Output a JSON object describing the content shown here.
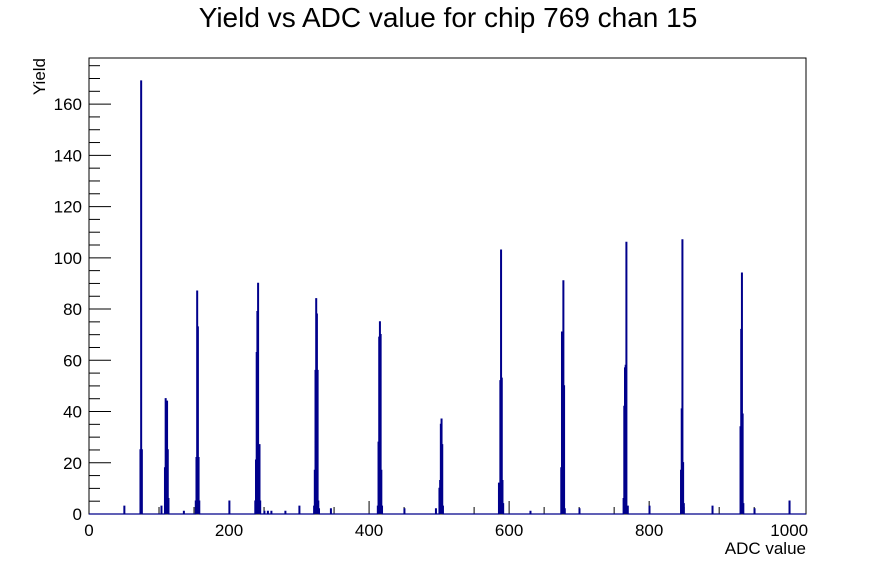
{
  "chart_data": {
    "type": "histogram",
    "title": "Yield vs ADC value for chip 769 chan 15",
    "xlabel": "ADC value",
    "ylabel": "Yield",
    "xlim": [
      0,
      1024
    ],
    "ylim": [
      0,
      178
    ],
    "x_ticks": [
      0,
      200,
      400,
      600,
      800,
      1000
    ],
    "y_ticks": [
      0,
      20,
      40,
      60,
      80,
      100,
      120,
      140,
      160
    ],
    "line_color": "#00008b",
    "grid": false,
    "legend": "none",
    "series": [
      {
        "bin_width": 1,
        "bins": [
          [
            50,
            3
          ],
          [
            73,
            25
          ],
          [
            74,
            169
          ],
          [
            75,
            25
          ],
          [
            103,
            3
          ],
          [
            108,
            18
          ],
          [
            109,
            45
          ],
          [
            110,
            18
          ],
          [
            111,
            44
          ],
          [
            112,
            25
          ],
          [
            113,
            6
          ],
          [
            135,
            1
          ],
          [
            152,
            5
          ],
          [
            153,
            22
          ],
          [
            154,
            87
          ],
          [
            155,
            73
          ],
          [
            156,
            22
          ],
          [
            157,
            5
          ],
          [
            200,
            5
          ],
          [
            237,
            5
          ],
          [
            238,
            21
          ],
          [
            239,
            63
          ],
          [
            240,
            79
          ],
          [
            241,
            90
          ],
          [
            242,
            26
          ],
          [
            243,
            27
          ],
          [
            244,
            5
          ],
          [
            250,
            1
          ],
          [
            255,
            1
          ],
          [
            260,
            1
          ],
          [
            280,
            1
          ],
          [
            300,
            3
          ],
          [
            321,
            3
          ],
          [
            322,
            17
          ],
          [
            323,
            56
          ],
          [
            324,
            84
          ],
          [
            325,
            78
          ],
          [
            326,
            56
          ],
          [
            327,
            5
          ],
          [
            328,
            2
          ],
          [
            345,
            2
          ],
          [
            412,
            3
          ],
          [
            413,
            28
          ],
          [
            414,
            69
          ],
          [
            415,
            75
          ],
          [
            416,
            70
          ],
          [
            417,
            17
          ],
          [
            418,
            3
          ],
          [
            450,
            2
          ],
          [
            495,
            2
          ],
          [
            500,
            10
          ],
          [
            501,
            13
          ],
          [
            502,
            35
          ],
          [
            503,
            37
          ],
          [
            504,
            27
          ],
          [
            505,
            3
          ],
          [
            585,
            12
          ],
          [
            586,
            6
          ],
          [
            587,
            52
          ],
          [
            588,
            103
          ],
          [
            589,
            53
          ],
          [
            590,
            13
          ],
          [
            591,
            4
          ],
          [
            630,
            1
          ],
          [
            674,
            18
          ],
          [
            675,
            71
          ],
          [
            676,
            71
          ],
          [
            677,
            91
          ],
          [
            678,
            50
          ],
          [
            679,
            2
          ],
          [
            700,
            2
          ],
          [
            763,
            6
          ],
          [
            764,
            42
          ],
          [
            765,
            57
          ],
          [
            766,
            58
          ],
          [
            767,
            106
          ],
          [
            768,
            2
          ],
          [
            769,
            3
          ],
          [
            800,
            3
          ],
          [
            845,
            17
          ],
          [
            846,
            41
          ],
          [
            847,
            107
          ],
          [
            848,
            20
          ],
          [
            849,
            4
          ],
          [
            890,
            3
          ],
          [
            930,
            34
          ],
          [
            931,
            72
          ],
          [
            932,
            94
          ],
          [
            933,
            39
          ],
          [
            934,
            4
          ],
          [
            950,
            2
          ],
          [
            1000,
            5
          ]
        ]
      }
    ]
  }
}
